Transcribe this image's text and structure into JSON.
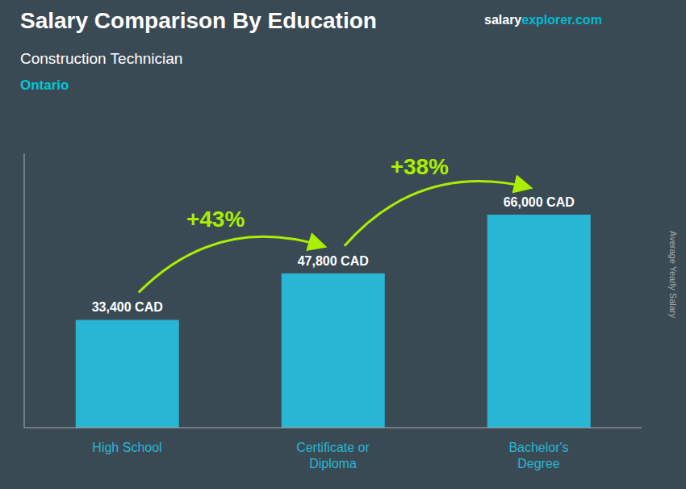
{
  "chart_data": {
    "type": "bar",
    "title": "Salary Comparison By Education",
    "subtitle": "Construction Technician",
    "region": "Ontario",
    "categories": [
      "High School",
      "Certificate or\nDiploma",
      "Bachelor's\nDegree"
    ],
    "values": [
      33400,
      47800,
      66000
    ],
    "value_labels": [
      "33,400 CAD",
      "47,800 CAD",
      "66,000 CAD"
    ],
    "data_labels": true,
    "color": "#29b6d4",
    "background_color": "#3a4a55",
    "annotations": [
      "+43%",
      "+38%"
    ],
    "annotation_color": "#aaee00",
    "y_label": "Average Yearly Salary",
    "watermark": [
      "salary",
      "explorer.com"
    ],
    "ylim": [
      0,
      85000
    ],
    "tick_labels": false,
    "grid": false
  }
}
